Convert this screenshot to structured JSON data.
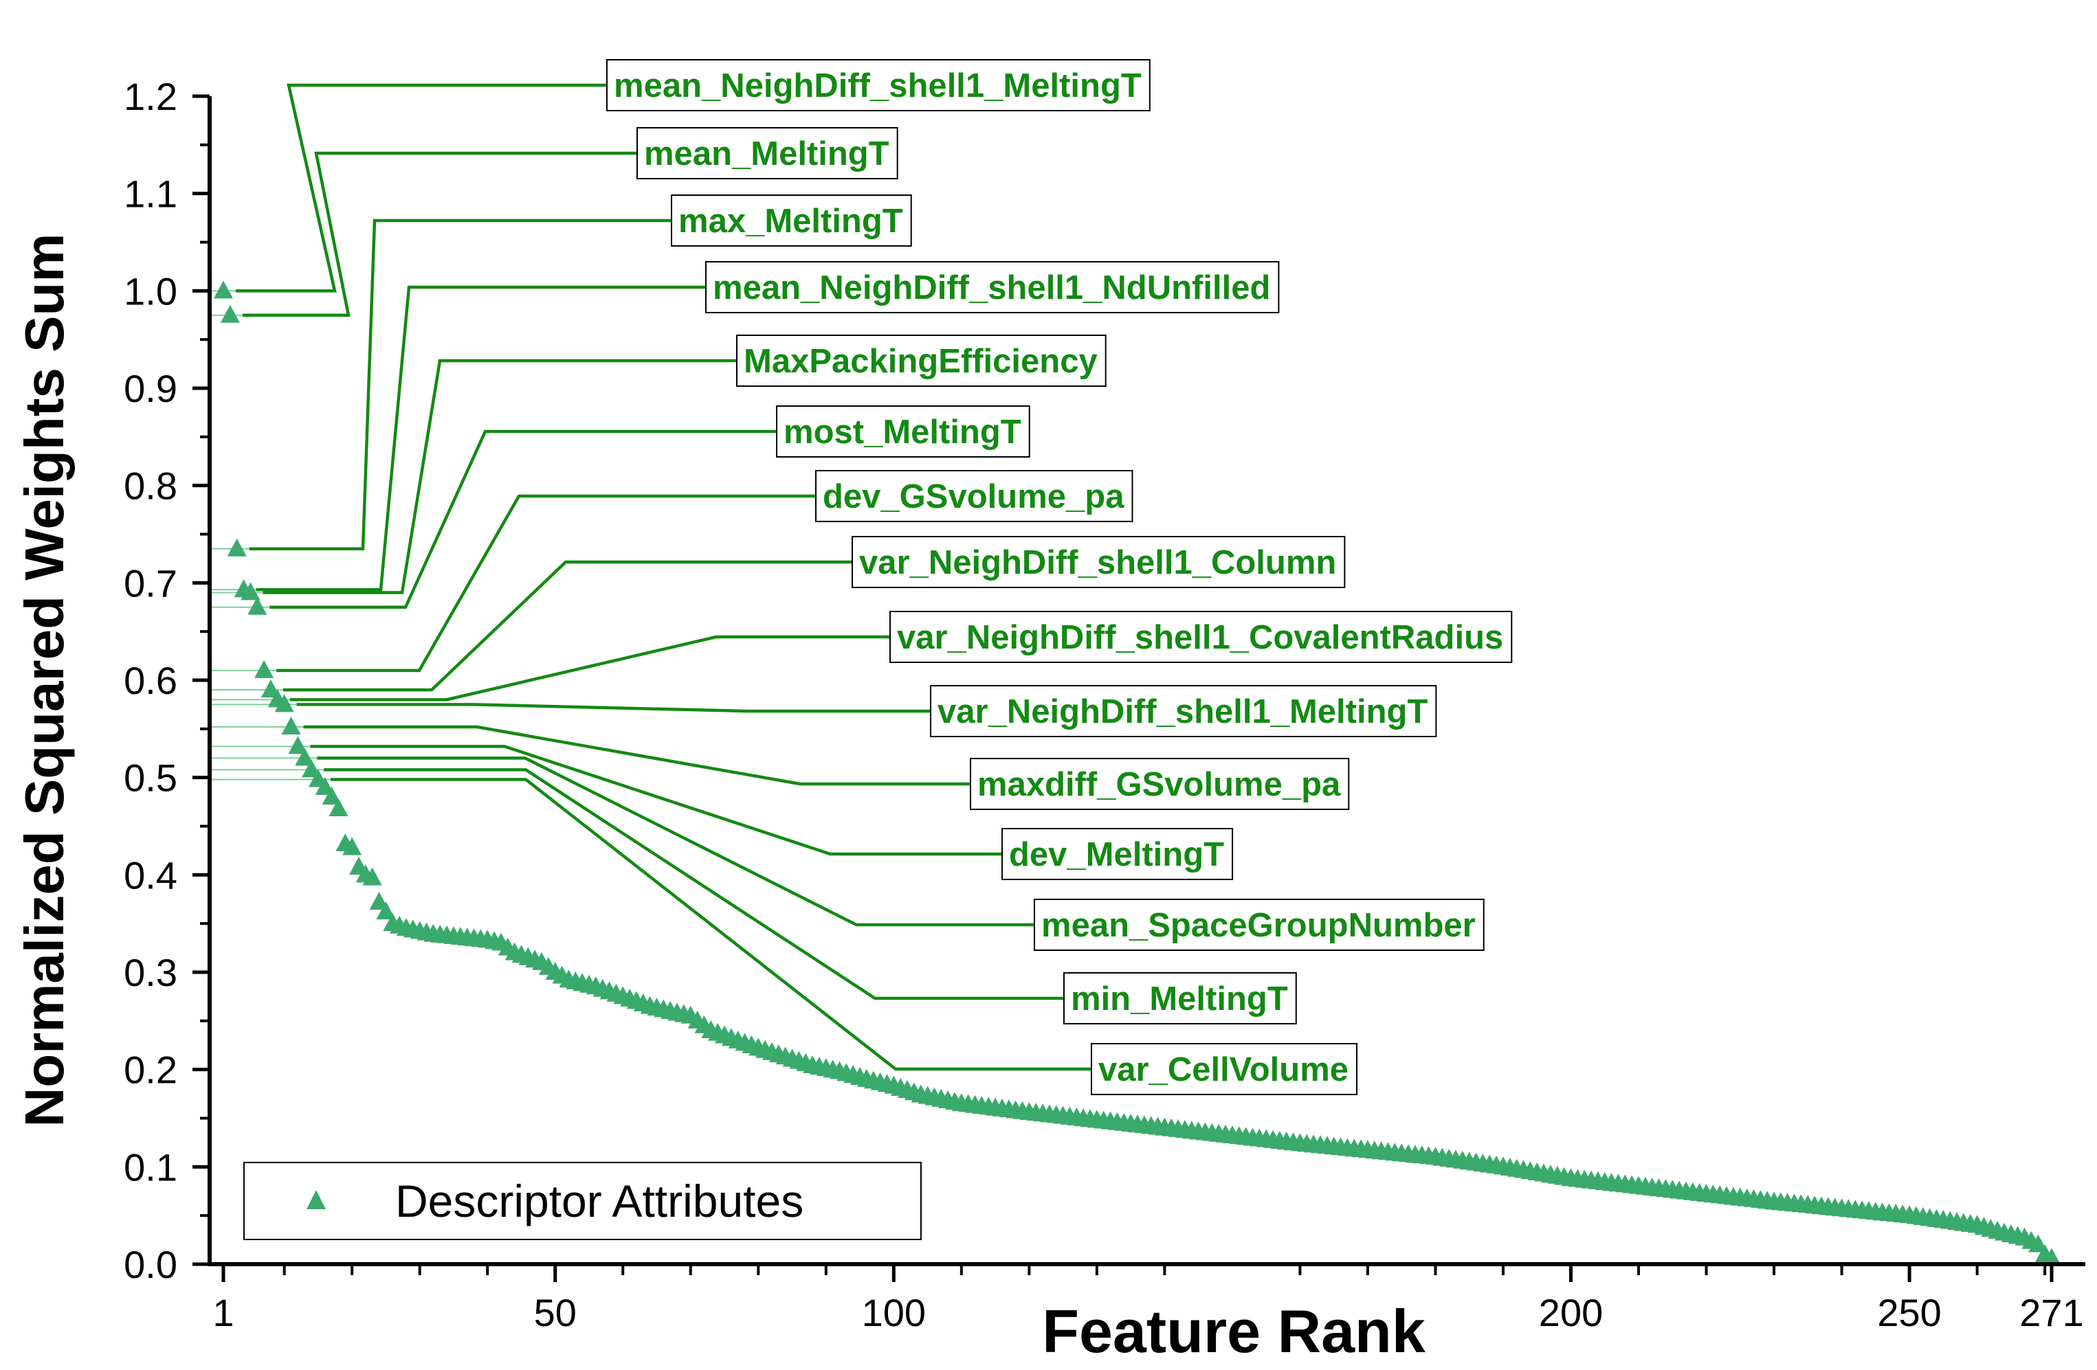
{
  "chart_data": {
    "type": "scatter",
    "xlabel": "Feature Rank",
    "ylabel": "Normalized Squared Weights Sum",
    "xlim": [
      1,
      271
    ],
    "ylim": [
      0,
      1.2
    ],
    "xticks": [
      1,
      50,
      100,
      200,
      250,
      271
    ],
    "yticks": [
      0.0,
      0.1,
      0.2,
      0.3,
      0.4,
      0.5,
      0.6,
      0.7,
      0.8,
      0.9,
      1.0,
      1.1,
      1.2
    ],
    "yticklabels": [
      "0.0",
      "0.1",
      "0.2",
      "0.3",
      "0.4",
      "0.5",
      "0.6",
      "0.7",
      "0.8",
      "0.9",
      "1.0",
      "1.1",
      "1.2"
    ],
    "legend": {
      "placement": "bottom-left",
      "entries": [
        "Descriptor Attributes"
      ]
    },
    "marker_color": "#3aaa6c",
    "annotation_color": "#138a13",
    "series": [
      {
        "name": "Descriptor Attributes",
        "anchors": [
          [
            1,
            1.0
          ],
          [
            2,
            0.975
          ],
          [
            3,
            0.735
          ],
          [
            4,
            0.693
          ],
          [
            5,
            0.69
          ],
          [
            6,
            0.675
          ],
          [
            7,
            0.61
          ],
          [
            8,
            0.59
          ],
          [
            9,
            0.58
          ],
          [
            10,
            0.575
          ],
          [
            11,
            0.552
          ],
          [
            12,
            0.532
          ],
          [
            13,
            0.52
          ],
          [
            14,
            0.508
          ],
          [
            15,
            0.498
          ],
          [
            16,
            0.49
          ],
          [
            17,
            0.48
          ],
          [
            18,
            0.468
          ],
          [
            19,
            0.432
          ],
          [
            20,
            0.428
          ],
          [
            21,
            0.408
          ],
          [
            22,
            0.4
          ],
          [
            23,
            0.397
          ],
          [
            24,
            0.372
          ],
          [
            25,
            0.362
          ],
          [
            26,
            0.35
          ],
          [
            28,
            0.345
          ],
          [
            32,
            0.339
          ],
          [
            36,
            0.336
          ],
          [
            40,
            0.333
          ],
          [
            42,
            0.33
          ],
          [
            44,
            0.32
          ],
          [
            48,
            0.31
          ],
          [
            50,
            0.3
          ],
          [
            52,
            0.292
          ],
          [
            56,
            0.285
          ],
          [
            60,
            0.275
          ],
          [
            64,
            0.265
          ],
          [
            68,
            0.258
          ],
          [
            70,
            0.255
          ],
          [
            73,
            0.24
          ],
          [
            76,
            0.232
          ],
          [
            80,
            0.222
          ],
          [
            84,
            0.213
          ],
          [
            88,
            0.204
          ],
          [
            92,
            0.198
          ],
          [
            96,
            0.19
          ],
          [
            100,
            0.183
          ],
          [
            104,
            0.174
          ],
          [
            110,
            0.165
          ],
          [
            120,
            0.156
          ],
          [
            130,
            0.148
          ],
          [
            140,
            0.14
          ],
          [
            150,
            0.132
          ],
          [
            160,
            0.124
          ],
          [
            170,
            0.117
          ],
          [
            180,
            0.11
          ],
          [
            190,
            0.1
          ],
          [
            200,
            0.088
          ],
          [
            210,
            0.08
          ],
          [
            220,
            0.072
          ],
          [
            230,
            0.064
          ],
          [
            240,
            0.057
          ],
          [
            250,
            0.05
          ],
          [
            255,
            0.045
          ],
          [
            260,
            0.04
          ],
          [
            264,
            0.032
          ],
          [
            267,
            0.027
          ],
          [
            269,
            0.02
          ],
          [
            270,
            0.01
          ],
          [
            271,
            0.006
          ]
        ]
      }
    ],
    "annotations": [
      {
        "label": "mean_NeighDiff_shell1_MeltingT",
        "x": 1,
        "y": 1.0
      },
      {
        "label": "mean_MeltingT",
        "x": 2,
        "y": 0.975
      },
      {
        "label": "max_MeltingT",
        "x": 3,
        "y": 0.735
      },
      {
        "label": "mean_NeighDiff_shell1_NdUnfilled",
        "x": 4,
        "y": 0.693
      },
      {
        "label": "MaxPackingEfficiency",
        "x": 5,
        "y": 0.69
      },
      {
        "label": "most_MeltingT",
        "x": 6,
        "y": 0.675
      },
      {
        "label": "dev_GSvolume_pa",
        "x": 7,
        "y": 0.61
      },
      {
        "label": "var_NeighDiff_shell1_Column",
        "x": 8,
        "y": 0.59
      },
      {
        "label": "var_NeighDiff_shell1_CovalentRadius",
        "x": 9,
        "y": 0.58
      },
      {
        "label": "var_NeighDiff_shell1_MeltingT",
        "x": 10,
        "y": 0.575
      },
      {
        "label": "maxdiff_GSvolume_pa",
        "x": 11,
        "y": 0.552
      },
      {
        "label": "dev_MeltingT",
        "x": 12,
        "y": 0.532
      },
      {
        "label": "mean_SpaceGroupNumber",
        "x": 13,
        "y": 0.52
      },
      {
        "label": "min_MeltingT",
        "x": 14,
        "y": 0.508
      },
      {
        "label": "var_CellVolume",
        "x": 15,
        "y": 0.498
      }
    ]
  }
}
